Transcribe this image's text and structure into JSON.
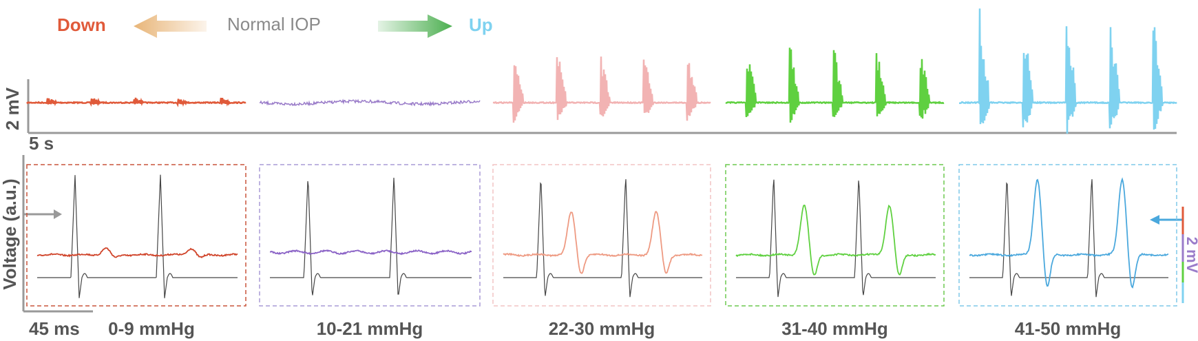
{
  "legend": {
    "down": "Down",
    "normal": "Normal IOP",
    "up": "Up"
  },
  "scale_bars": {
    "top_voltage": "2 mV",
    "top_time": "5 s",
    "bottom_voltage": "Voltage (a.u.)",
    "bottom_time": "45 ms",
    "right_voltage": "2 mV"
  },
  "panels": [
    {
      "label": "0-9 mmHg"
    },
    {
      "label": "10-21 mmHg"
    },
    {
      "label": "22-30 mmHg"
    },
    {
      "label": "31-40 mmHg"
    },
    {
      "label": "41-50 mmHg"
    }
  ]
}
